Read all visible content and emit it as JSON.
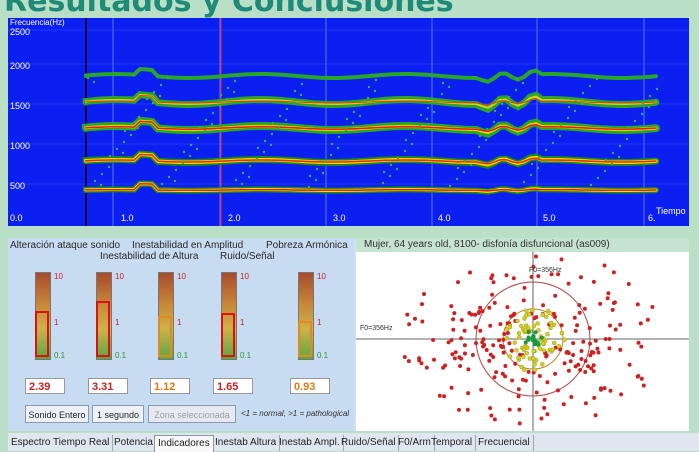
{
  "slide": {
    "title": "Resultados y Conclusiones"
  },
  "spectrogram": {
    "ylabel": "Frecuencia(Hz)",
    "y_ticks": [
      "2500",
      "2000",
      "1500",
      "1000",
      "500",
      "0.0"
    ],
    "x_ticks": [
      "1.0",
      "2.0",
      "3.0",
      "4.0",
      "5.0",
      "6."
    ],
    "xlabel": "Tiempo"
  },
  "indicators": {
    "headers": {
      "attack": "Alteración ataque sonido",
      "amp": "Inestabilidad en Amplitud",
      "pitch": "Inestabilidad de Altura",
      "noise": "Ruido/Señal",
      "harm": "Pobreza Armónica"
    },
    "scale": {
      "top": "10",
      "mid": "1",
      "low": "0.1"
    },
    "values": [
      "2.39",
      "3.31",
      "1.12",
      "1.65",
      "0.93"
    ],
    "buttons": {
      "full": "Sonido Entero",
      "second": "1 segundo",
      "zone": "Zona seleccionada"
    },
    "note": "<1 = normal, >1 = pathological"
  },
  "scatter": {
    "title": "Mujer, 64 years old, 8100-  disfonía disfuncional (as009)",
    "f0_label": "F0=356Hz",
    "f0_label_top": "F0=356Hz"
  },
  "tabs": [
    "Espectro Tiempo Real",
    "Potencia",
    "Indicadores",
    "Inestab Altura",
    "Inestab Ampl.",
    "Ruido/Señal",
    "F0/Arm",
    "Temporal",
    "Frecuencial"
  ],
  "active_tab": "Indicadores",
  "colors": {
    "spectro_bg": "#0a1ff0",
    "accent_red": "#e01010",
    "title": "#1f8a78"
  }
}
